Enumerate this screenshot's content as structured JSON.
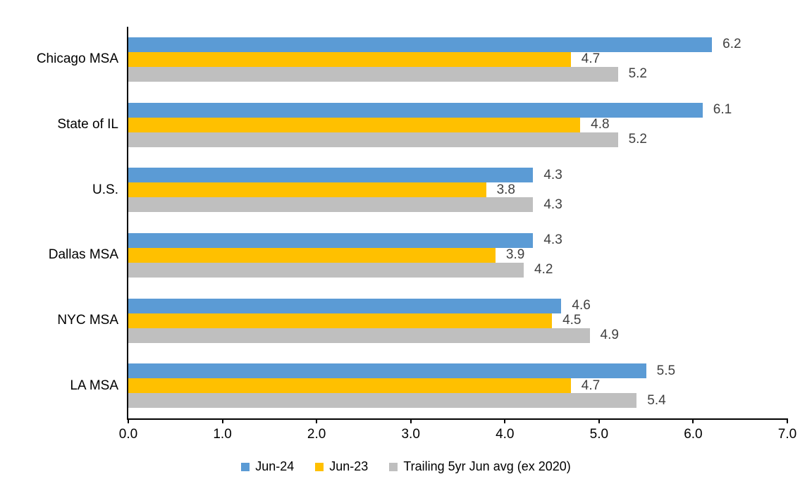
{
  "chart_data": {
    "type": "bar",
    "orientation": "horizontal",
    "title": "",
    "xlabel": "",
    "ylabel": "",
    "categories": [
      "Chicago MSA",
      "State of IL",
      "U.S.",
      "Dallas MSA",
      "NYC MSA",
      "LA MSA"
    ],
    "series": [
      {
        "name": "Jun-24",
        "color": "#5B9BD5",
        "values": [
          6.2,
          6.1,
          4.3,
          4.3,
          4.6,
          5.5
        ]
      },
      {
        "name": "Jun-23",
        "color": "#FFC000",
        "values": [
          4.7,
          4.8,
          3.8,
          3.9,
          4.5,
          4.7
        ]
      },
      {
        "name": "Trailing 5yr Jun avg (ex 2020)",
        "color": "#BFBFBF",
        "values": [
          5.2,
          5.2,
          4.3,
          4.2,
          4.9,
          5.4
        ]
      }
    ],
    "xlim": [
      0,
      7
    ],
    "x_ticks": [
      "0.0",
      "1.0",
      "2.0",
      "3.0",
      "4.0",
      "5.0",
      "6.0",
      "7.0"
    ],
    "grid": false,
    "data_labels": true,
    "data_label_color": "#404040",
    "data_label_decimals": 1,
    "axis_color": "#000000",
    "legend_position": "bottom"
  }
}
